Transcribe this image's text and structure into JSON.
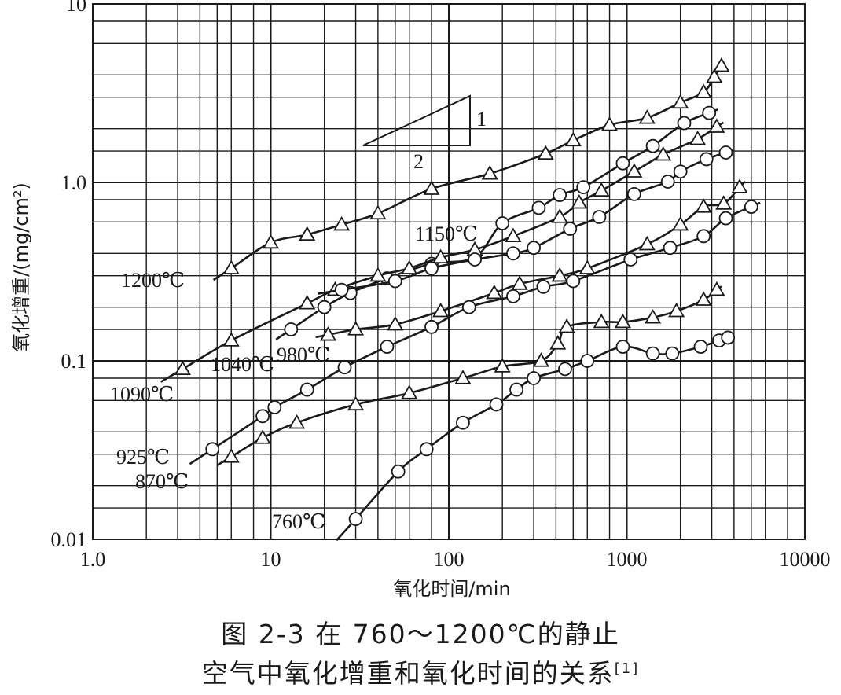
{
  "caption": {
    "line1": "图 2-3 在 760～1200℃的静止",
    "line2": "空气中氧化增重和氧化时间的关系",
    "ref": "[1]"
  },
  "chart_data": {
    "type": "line",
    "title": "",
    "xlabel": "氧化时间/min",
    "ylabel": "氧化增重/(mg/cm²)",
    "x_scale": "log",
    "y_scale": "log",
    "xlim": [
      1,
      10000
    ],
    "ylim": [
      0.01,
      10
    ],
    "grid": true,
    "x_ticks": [
      "1.0",
      "10",
      "100",
      "1000",
      "10000"
    ],
    "y_ticks": [
      "0.01",
      "0.1",
      "1.0",
      "10"
    ],
    "slope_triangle": {
      "rise": "1",
      "run": "2"
    },
    "series": [
      {
        "name": "1200℃",
        "marker": "triangle",
        "x": [
          6,
          10,
          16,
          25,
          40,
          80,
          170,
          350,
          500,
          800,
          1300,
          2000,
          2700,
          3100,
          3400
        ],
        "y": [
          0.33,
          0.46,
          0.51,
          0.58,
          0.67,
          0.92,
          1.12,
          1.45,
          1.72,
          2.1,
          2.3,
          2.8,
          3.2,
          3.9,
          4.5
        ]
      },
      {
        "name": "1150℃",
        "marker": "circle",
        "x": [
          13,
          20,
          28,
          45,
          80,
          140,
          200,
          320,
          420,
          570,
          950,
          1400,
          2100,
          2900
        ],
        "y": [
          0.15,
          0.2,
          0.24,
          0.29,
          0.35,
          0.38,
          0.59,
          0.72,
          0.85,
          0.94,
          1.28,
          1.6,
          2.15,
          2.45
        ]
      },
      {
        "name": "1090℃",
        "marker": "triangle",
        "x": [
          3.2,
          6,
          16,
          23,
          40,
          60,
          90,
          140,
          230,
          420,
          540,
          720,
          1100,
          1600,
          2500,
          3200
        ],
        "y": [
          0.09,
          0.13,
          0.21,
          0.25,
          0.3,
          0.33,
          0.38,
          0.42,
          0.5,
          0.64,
          0.77,
          0.9,
          1.15,
          1.43,
          1.75,
          2.05
        ]
      },
      {
        "name": "1040℃",
        "marker": "circle",
        "x": [
          25,
          50,
          80,
          140,
          230,
          300,
          480,
          700,
          1100,
          1700,
          2000,
          2800,
          3600
        ],
        "y": [
          0.25,
          0.28,
          0.33,
          0.37,
          0.4,
          0.43,
          0.55,
          0.64,
          0.86,
          1.01,
          1.15,
          1.35,
          1.47
        ]
      },
      {
        "name": "980℃",
        "marker": "triangle",
        "x": [
          21,
          30,
          50,
          90,
          180,
          250,
          420,
          600,
          1300,
          2000,
          2700,
          3500,
          4300
        ],
        "y": [
          0.14,
          0.15,
          0.16,
          0.19,
          0.24,
          0.27,
          0.3,
          0.33,
          0.45,
          0.58,
          0.73,
          0.76,
          0.94
        ]
      },
      {
        "name": "925℃",
        "marker": "circle",
        "x": [
          4.7,
          9,
          10.5,
          16,
          26,
          45,
          80,
          130,
          230,
          340,
          500,
          1050,
          1750,
          2700,
          3600,
          5000
        ],
        "y": [
          0.032,
          0.049,
          0.055,
          0.069,
          0.092,
          0.12,
          0.155,
          0.2,
          0.23,
          0.26,
          0.28,
          0.37,
          0.43,
          0.5,
          0.63,
          0.73
        ]
      },
      {
        "name": "870℃",
        "marker": "triangle",
        "x": [
          6,
          9,
          14,
          30,
          60,
          120,
          200,
          330,
          410,
          460,
          720,
          950,
          1400,
          1900,
          2700,
          3200
        ],
        "y": [
          0.029,
          0.037,
          0.045,
          0.057,
          0.066,
          0.08,
          0.093,
          0.1,
          0.125,
          0.155,
          0.165,
          0.165,
          0.175,
          0.19,
          0.22,
          0.25
        ]
      },
      {
        "name": "760℃",
        "marker": "circle",
        "x": [
          30,
          52,
          75,
          120,
          185,
          240,
          300,
          450,
          600,
          950,
          1400,
          1800,
          2600,
          3300,
          3700
        ],
        "y": [
          0.013,
          0.024,
          0.032,
          0.045,
          0.057,
          0.069,
          0.08,
          0.09,
          0.1,
          0.12,
          0.11,
          0.11,
          0.12,
          0.13,
          0.135
        ]
      }
    ]
  }
}
